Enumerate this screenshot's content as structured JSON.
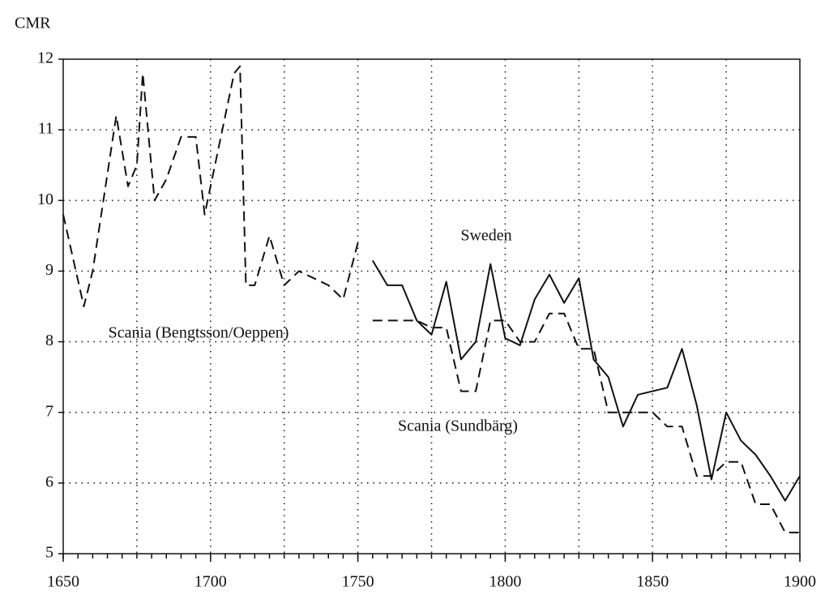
{
  "chart_data": {
    "type": "line",
    "y_label": "CMR",
    "xlim": [
      1650,
      1900
    ],
    "ylim": [
      5,
      12
    ],
    "xticks": [
      1650,
      1700,
      1750,
      1800,
      1850,
      1900
    ],
    "yticks": [
      5,
      6,
      7,
      8,
      9,
      10,
      11,
      12
    ],
    "x_grid_interval": 25,
    "x_minor_tick_interval": 5,
    "grid": true,
    "series": [
      {
        "name": "Scania (Bengtsson/Oeppen)",
        "color": "#111111",
        "dashed": true,
        "x": [
          1650,
          1657,
          1660,
          1668,
          1672,
          1675,
          1677,
          1681,
          1685,
          1690,
          1695,
          1698,
          1708,
          1710,
          1712,
          1715,
          1720,
          1725,
          1730,
          1735,
          1740,
          1745,
          1750
        ],
        "values": [
          9.8,
          8.5,
          9.0,
          11.2,
          10.2,
          10.5,
          11.8,
          10.0,
          10.3,
          10.9,
          10.9,
          9.8,
          11.8,
          11.9,
          8.8,
          8.8,
          9.5,
          8.8,
          9.0,
          8.9,
          8.8,
          8.6,
          9.4
        ]
      },
      {
        "name": "Sweden",
        "color": "#111111",
        "dashed": false,
        "x": [
          1755,
          1760,
          1765,
          1770,
          1775,
          1780,
          1785,
          1790,
          1795,
          1800,
          1805,
          1810,
          1815,
          1820,
          1825,
          1830,
          1835,
          1840,
          1845,
          1850,
          1855,
          1860,
          1865,
          1870,
          1875,
          1880,
          1885,
          1890,
          1895,
          1900
        ],
        "values": [
          9.15,
          8.8,
          8.8,
          8.3,
          8.1,
          8.85,
          7.75,
          8.0,
          9.1,
          8.05,
          7.95,
          8.6,
          8.95,
          8.55,
          8.9,
          7.75,
          7.5,
          6.8,
          7.25,
          7.3,
          7.35,
          7.9,
          7.1,
          6.05,
          7.0,
          6.6,
          6.4,
          6.1,
          5.75,
          6.1
        ]
      },
      {
        "name": "Scania (Sundbärg)",
        "color": "#111111",
        "dashed": true,
        "x": [
          1755,
          1760,
          1765,
          1770,
          1775,
          1780,
          1785,
          1790,
          1795,
          1800,
          1805,
          1810,
          1815,
          1820,
          1825,
          1830,
          1835,
          1840,
          1845,
          1850,
          1855,
          1860,
          1865,
          1870,
          1875,
          1880,
          1885,
          1890,
          1895,
          1900
        ],
        "values": [
          8.3,
          8.3,
          8.3,
          8.3,
          8.2,
          8.2,
          7.3,
          7.3,
          8.3,
          8.3,
          8.0,
          8.0,
          8.4,
          8.4,
          7.9,
          7.9,
          7.0,
          7.0,
          7.0,
          7.0,
          6.8,
          6.8,
          6.1,
          6.1,
          6.3,
          6.3,
          5.7,
          5.7,
          5.3,
          5.3
        ]
      }
    ]
  }
}
